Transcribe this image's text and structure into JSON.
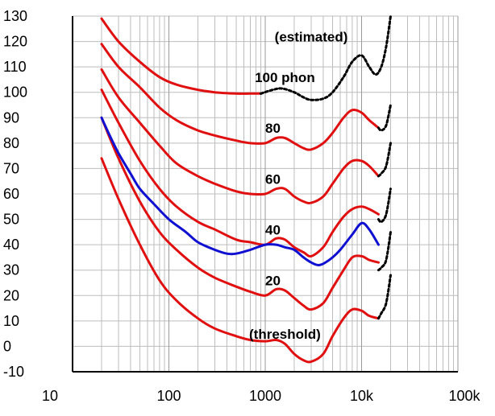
{
  "chart_data": {
    "type": "line",
    "title": "",
    "xlabel": "",
    "ylabel": "",
    "x_scale": "log",
    "xlim": [
      10,
      100000
    ],
    "ylim": [
      -10,
      130
    ],
    "grid": true,
    "x_ticks": [
      {
        "value": 10,
        "label": "10"
      },
      {
        "value": 100,
        "label": "100"
      },
      {
        "value": 1000,
        "label": "1000"
      },
      {
        "value": 10000,
        "label": "10k"
      },
      {
        "value": 100000,
        "label": "100k"
      }
    ],
    "y_ticks": [
      {
        "value": 130,
        "label": "130"
      },
      {
        "value": 120,
        "label": "120"
      },
      {
        "value": 110,
        "label": "110"
      },
      {
        "value": 100,
        "label": "100"
      },
      {
        "value": 90,
        "label": "90"
      },
      {
        "value": 80,
        "label": "80"
      },
      {
        "value": 70,
        "label": "70"
      },
      {
        "value": 60,
        "label": "60"
      },
      {
        "value": 50,
        "label": "50"
      },
      {
        "value": 40,
        "label": "40"
      },
      {
        "value": 30,
        "label": "30"
      },
      {
        "value": 20,
        "label": "20"
      },
      {
        "value": 10,
        "label": "10"
      },
      {
        "value": 0,
        "label": "0"
      },
      {
        "value": -10,
        "label": "-10"
      }
    ],
    "colors": {
      "red": "#e01010",
      "blue": "#1010d0",
      "dotted": "#000000",
      "grid": "#bdbdbd",
      "axis": "#000000"
    },
    "annotations": [
      {
        "text": "(estimated)",
        "x": 3000,
        "y": 120
      },
      {
        "text": "100 phon",
        "x": 1600,
        "y": 104
      },
      {
        "text": "80",
        "x": 1200,
        "y": 84
      },
      {
        "text": "60",
        "x": 1200,
        "y": 64
      },
      {
        "text": "40",
        "x": 1200,
        "y": 44
      },
      {
        "text": "20",
        "x": 1200,
        "y": 24
      },
      {
        "text": "(threshold)",
        "x": 1600,
        "y": 3
      }
    ],
    "series": [
      {
        "key": "phon-100",
        "style": "red",
        "x": [
          20,
          30,
          50,
          80,
          120,
          200,
          300,
          500,
          700,
          900
        ],
        "y": [
          129,
          120,
          112,
          106,
          103,
          101,
          100,
          99.5,
          99.5,
          99.5
        ]
      },
      {
        "key": "phon-100-estimated",
        "style": "dotted",
        "x": [
          900,
          1200,
          1500,
          2000,
          2500,
          3000,
          4000,
          5000,
          6500,
          8000,
          10000,
          12000,
          14000,
          16000,
          18000,
          20000
        ],
        "y": [
          99.5,
          101,
          101.5,
          100,
          98,
          97,
          97.5,
          100,
          106,
          112,
          114.5,
          110,
          107,
          110,
          118,
          130
        ]
      },
      {
        "key": "phon-80",
        "style": "red",
        "x": [
          20,
          30,
          50,
          80,
          120,
          200,
          300,
          500,
          700,
          1000,
          1300,
          1600,
          2000,
          2500,
          3000,
          4000,
          5000,
          6500,
          8000,
          10000,
          12000,
          15000
        ],
        "y": [
          119,
          110,
          102,
          94,
          89,
          85,
          83,
          81,
          80,
          80,
          82,
          82,
          80,
          78,
          77.5,
          80,
          84,
          90,
          93,
          92,
          89,
          86
        ]
      },
      {
        "key": "phon-60",
        "style": "red",
        "x": [
          20,
          30,
          50,
          80,
          120,
          200,
          300,
          500,
          700,
          1000,
          1300,
          1600,
          2000,
          2500,
          3000,
          4000,
          5000,
          6500,
          8000,
          10000,
          12000,
          15000
        ],
        "y": [
          109,
          98,
          88,
          79,
          72,
          67,
          64,
          61,
          60,
          60,
          62,
          62,
          59,
          57,
          56.5,
          59,
          64,
          70,
          73,
          73,
          71,
          67
        ]
      },
      {
        "key": "phon-40",
        "style": "red",
        "x": [
          20,
          30,
          50,
          80,
          120,
          200,
          300,
          500,
          700,
          1000,
          1300,
          1600,
          2000,
          2500,
          3000,
          4000,
          5000,
          6500,
          8000,
          10000,
          12000,
          15000
        ],
        "y": [
          101,
          88,
          73,
          62,
          55,
          49,
          46,
          42,
          41,
          40,
          42.5,
          42,
          39,
          37,
          35.5,
          39,
          45,
          51,
          54,
          55,
          54,
          52
        ]
      },
      {
        "key": "phon-20",
        "style": "red",
        "x": [
          20,
          30,
          50,
          80,
          120,
          200,
          300,
          500,
          700,
          1000,
          1300,
          1600,
          2000,
          2500,
          3000,
          4000,
          5000,
          6500,
          8000,
          10000,
          12000,
          15000
        ],
        "y": [
          90,
          74,
          57,
          45,
          38,
          31,
          27,
          23.5,
          21.5,
          20,
          22.5,
          22,
          19,
          16,
          14.5,
          17,
          23,
          30,
          35,
          35.5,
          34,
          33
        ]
      },
      {
        "key": "threshold",
        "style": "red",
        "x": [
          20,
          30,
          50,
          80,
          120,
          200,
          300,
          500,
          700,
          1000,
          1300,
          1600,
          2000,
          2500,
          3000,
          4000,
          5000,
          6500,
          8000,
          10000,
          12000,
          15000
        ],
        "y": [
          74,
          58,
          40,
          26,
          18,
          11,
          7,
          4,
          2.5,
          2,
          2.5,
          1,
          -3,
          -5.5,
          -6,
          -3,
          4,
          11,
          14.5,
          14,
          12,
          11
        ]
      },
      {
        "key": "blue-curve",
        "style": "blue",
        "x": [
          20,
          25,
          30,
          40,
          50,
          70,
          100,
          150,
          200,
          300,
          400,
          500,
          700,
          1000,
          1300,
          1600,
          2000,
          2500,
          3000,
          3500,
          4000,
          5000,
          6000,
          8000,
          10000,
          12000,
          15000
        ],
        "y": [
          90,
          82,
          76,
          68,
          62,
          56,
          50,
          45,
          41,
          38,
          36.5,
          36.5,
          38,
          40,
          40,
          39,
          38,
          35,
          33,
          32,
          32.5,
          35,
          38,
          44,
          48.5,
          46,
          40
        ]
      },
      {
        "key": "dotted-50",
        "style": "dotted",
        "x": [
          15000,
          16000,
          18000,
          20000
        ],
        "y": [
          50,
          49,
          52,
          62
        ]
      },
      {
        "key": "dotted-40",
        "style": "dotted",
        "x": [
          15000,
          16000,
          18000,
          20000
        ],
        "y": [
          30,
          31,
          34,
          45
        ]
      },
      {
        "key": "dotted-20",
        "style": "dotted",
        "x": [
          15000,
          16000,
          18000,
          20000
        ],
        "y": [
          11,
          13,
          17,
          28
        ]
      },
      {
        "key": "dotted-80",
        "style": "dotted",
        "x": [
          15000,
          16000,
          18000,
          20000
        ],
        "y": [
          86,
          85,
          87,
          95
        ]
      },
      {
        "key": "dotted-60",
        "style": "dotted",
        "x": [
          15000,
          16000,
          18000,
          20000
        ],
        "y": [
          67,
          68,
          71,
          80
        ]
      }
    ]
  }
}
